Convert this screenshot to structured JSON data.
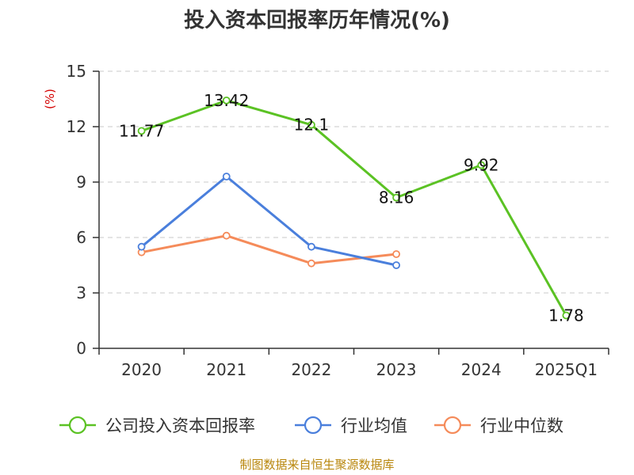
{
  "chart_data": {
    "type": "line",
    "title": "投入资本回报率历年情况(%)",
    "ylabel": "(%)",
    "xlabel": "",
    "categories": [
      "2020",
      "2021",
      "2022",
      "2023",
      "2024",
      "2025Q1"
    ],
    "ylim": [
      0,
      15
    ],
    "yticks": [
      0,
      3,
      6,
      9,
      12,
      15
    ],
    "grid": true,
    "legend_position": "bottom",
    "series": [
      {
        "name": "公司投入资本回报率",
        "color": "#5bc224",
        "values": [
          11.77,
          13.42,
          12.1,
          8.16,
          9.92,
          1.78
        ],
        "labels": [
          "11.77",
          "13.42",
          "12.1",
          "8.16",
          "9.92",
          "1.78"
        ],
        "show_labels": true
      },
      {
        "name": "行业均值",
        "color": "#4a7fdc",
        "values": [
          5.5,
          9.3,
          5.5,
          4.5,
          null,
          null
        ],
        "show_labels": false
      },
      {
        "name": "行业中位数",
        "color": "#f58b5a",
        "values": [
          5.2,
          6.1,
          4.6,
          5.1,
          null,
          null
        ],
        "show_labels": false
      }
    ]
  },
  "source": "制图数据来自恒生聚源数据库"
}
